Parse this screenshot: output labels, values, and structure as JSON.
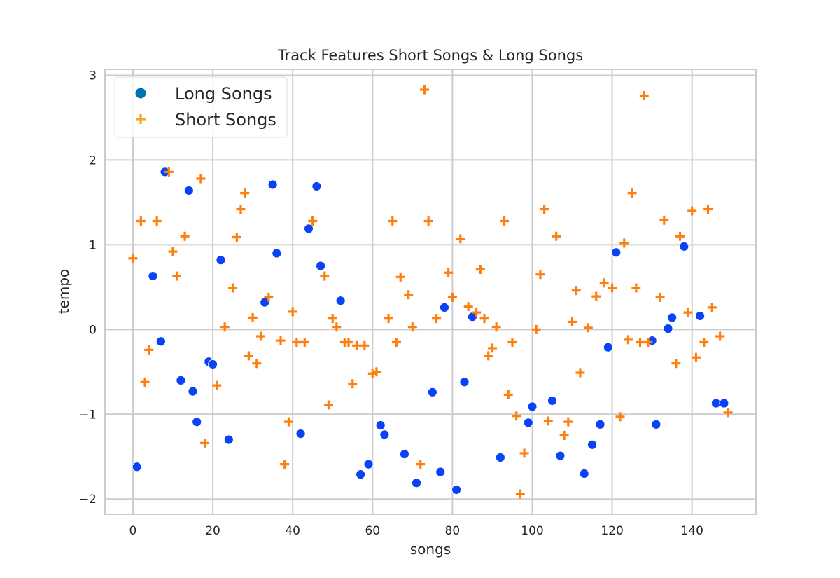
{
  "chart_data": {
    "type": "scatter",
    "title": "Track Features Short Songs & Long Songs",
    "xlabel": "songs",
    "ylabel": "tempo",
    "xlim": [
      -7,
      156
    ],
    "ylim": [
      -2.18,
      3.07
    ],
    "xticks": [
      0,
      20,
      40,
      60,
      80,
      100,
      120,
      140
    ],
    "yticks": [
      -2,
      -1,
      0,
      1,
      2,
      3
    ],
    "grid": true,
    "legend_position": "top-left",
    "legend_entries": [
      "Long Songs",
      "Short Songs"
    ],
    "series": [
      {
        "name": "Long Songs",
        "marker": "circle",
        "legend_color": "#0072b2",
        "color": "#0a42f5",
        "points": [
          [
            1,
            -1.62
          ],
          [
            5,
            0.63
          ],
          [
            7,
            -0.14
          ],
          [
            8,
            1.86
          ],
          [
            12,
            -0.6
          ],
          [
            14,
            1.64
          ],
          [
            15,
            -0.73
          ],
          [
            16,
            -1.09
          ],
          [
            19,
            -0.38
          ],
          [
            20,
            -0.41
          ],
          [
            22,
            0.82
          ],
          [
            24,
            -1.3
          ],
          [
            33,
            0.32
          ],
          [
            35,
            1.71
          ],
          [
            36,
            0.9
          ],
          [
            42,
            -1.23
          ],
          [
            44,
            1.19
          ],
          [
            46,
            1.69
          ],
          [
            47,
            0.75
          ],
          [
            52,
            0.34
          ],
          [
            57,
            -1.71
          ],
          [
            59,
            -1.59
          ],
          [
            62,
            -1.13
          ],
          [
            63,
            -1.24
          ],
          [
            68,
            -1.47
          ],
          [
            71,
            -1.81
          ],
          [
            75,
            -0.74
          ],
          [
            77,
            -1.68
          ],
          [
            78,
            0.26
          ],
          [
            81,
            -1.89
          ],
          [
            83,
            -0.62
          ],
          [
            85,
            0.15
          ],
          [
            92,
            -1.51
          ],
          [
            99,
            -1.1
          ],
          [
            100,
            -0.91
          ],
          [
            105,
            -0.84
          ],
          [
            107,
            -1.49
          ],
          [
            113,
            -1.7
          ],
          [
            115,
            -1.36
          ],
          [
            117,
            -1.12
          ],
          [
            119,
            -0.21
          ],
          [
            121,
            0.91
          ],
          [
            130,
            -0.13
          ],
          [
            131,
            -1.12
          ],
          [
            134,
            0.01
          ],
          [
            135,
            0.14
          ],
          [
            138,
            0.98
          ],
          [
            142,
            0.16
          ],
          [
            146,
            -0.87
          ],
          [
            148,
            -0.87
          ]
        ]
      },
      {
        "name": "Short Songs",
        "marker": "plus",
        "legend_color": "#f5a623",
        "color": "#ff7f0e",
        "points": [
          [
            0,
            0.84
          ],
          [
            2,
            1.28
          ],
          [
            3,
            -0.62
          ],
          [
            4,
            -0.24
          ],
          [
            6,
            1.28
          ],
          [
            9,
            1.86
          ],
          [
            10,
            0.92
          ],
          [
            11,
            0.63
          ],
          [
            13,
            1.1
          ],
          [
            17,
            1.78
          ],
          [
            18,
            -1.34
          ],
          [
            21,
            -0.66
          ],
          [
            23,
            0.03
          ],
          [
            25,
            0.49
          ],
          [
            26,
            1.09
          ],
          [
            27,
            1.42
          ],
          [
            28,
            1.61
          ],
          [
            29,
            -0.31
          ],
          [
            30,
            0.14
          ],
          [
            31,
            -0.4
          ],
          [
            32,
            -0.08
          ],
          [
            34,
            0.38
          ],
          [
            37,
            -0.13
          ],
          [
            38,
            -1.59
          ],
          [
            39,
            -1.09
          ],
          [
            40,
            0.21
          ],
          [
            41,
            -0.15
          ],
          [
            43,
            -0.15
          ],
          [
            45,
            1.28
          ],
          [
            48,
            0.63
          ],
          [
            49,
            -0.89
          ],
          [
            50,
            0.13
          ],
          [
            51,
            0.03
          ],
          [
            53,
            -0.15
          ],
          [
            54,
            -0.15
          ],
          [
            55,
            -0.64
          ],
          [
            56,
            -0.19
          ],
          [
            58,
            -0.19
          ],
          [
            60,
            -0.52
          ],
          [
            61,
            -0.5
          ],
          [
            64,
            0.13
          ],
          [
            65,
            1.28
          ],
          [
            66,
            -0.15
          ],
          [
            67,
            0.62
          ],
          [
            69,
            0.41
          ],
          [
            70,
            0.03
          ],
          [
            72,
            -1.59
          ],
          [
            73,
            2.83
          ],
          [
            74,
            1.28
          ],
          [
            76,
            0.13
          ],
          [
            79,
            0.67
          ],
          [
            80,
            0.38
          ],
          [
            82,
            1.07
          ],
          [
            84,
            0.27
          ],
          [
            86,
            0.2
          ],
          [
            87,
            0.71
          ],
          [
            88,
            0.13
          ],
          [
            89,
            -0.31
          ],
          [
            90,
            -0.22
          ],
          [
            91,
            0.03
          ],
          [
            93,
            1.28
          ],
          [
            94,
            -0.77
          ],
          [
            95,
            -0.15
          ],
          [
            96,
            -1.02
          ],
          [
            97,
            -1.94
          ],
          [
            98,
            -1.46
          ],
          [
            101,
            0.0
          ],
          [
            102,
            0.65
          ],
          [
            103,
            1.42
          ],
          [
            104,
            -1.08
          ],
          [
            106,
            1.1
          ],
          [
            108,
            -1.25
          ],
          [
            109,
            -1.09
          ],
          [
            110,
            0.09
          ],
          [
            111,
            0.46
          ],
          [
            112,
            -0.51
          ],
          [
            114,
            0.02
          ],
          [
            116,
            0.39
          ],
          [
            118,
            0.55
          ],
          [
            120,
            0.49
          ],
          [
            122,
            -1.03
          ],
          [
            123,
            1.02
          ],
          [
            124,
            -0.12
          ],
          [
            125,
            1.61
          ],
          [
            126,
            0.49
          ],
          [
            127,
            -0.15
          ],
          [
            128,
            2.76
          ],
          [
            129,
            -0.15
          ],
          [
            132,
            0.38
          ],
          [
            133,
            1.29
          ],
          [
            136,
            -0.4
          ],
          [
            137,
            1.1
          ],
          [
            139,
            0.2
          ],
          [
            140,
            1.4
          ],
          [
            141,
            -0.33
          ],
          [
            143,
            -0.15
          ],
          [
            144,
            1.42
          ],
          [
            145,
            0.26
          ],
          [
            147,
            -0.08
          ],
          [
            149,
            -0.98
          ]
        ]
      }
    ]
  }
}
